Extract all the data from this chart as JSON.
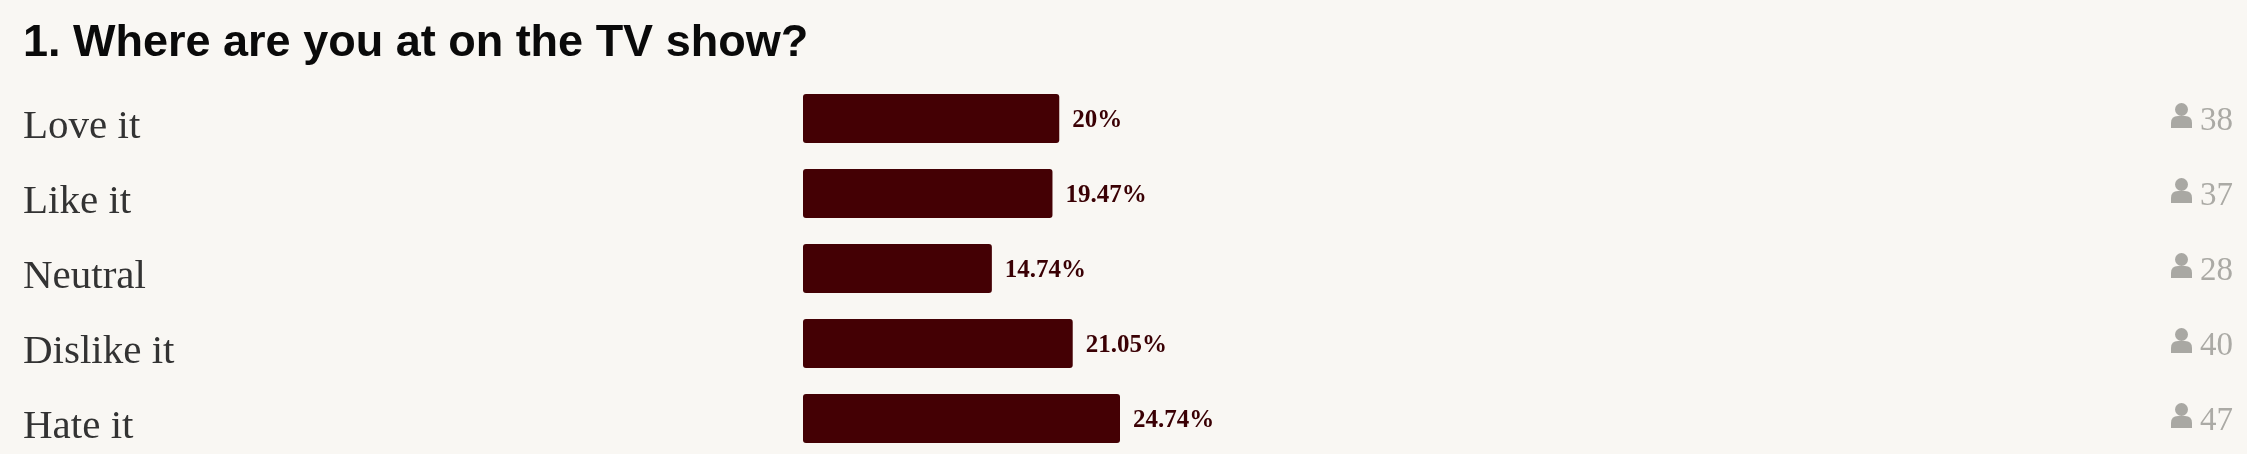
{
  "chart_data": {
    "type": "bar",
    "orientation": "horizontal",
    "title": "1. Where are you at on the TV show?",
    "categories": [
      "Love it",
      "Like it",
      "Neutral",
      "Dislike it",
      "Hate it"
    ],
    "values": [
      20,
      19.47,
      14.74,
      21.05,
      24.74
    ],
    "color": "#440004",
    "value_labels": [
      "20%",
      "19.47%",
      "14.74%",
      "21.05%",
      "24.74%"
    ],
    "annotations": [
      "38",
      "37",
      "28",
      "40",
      "47"
    ]
  }
}
